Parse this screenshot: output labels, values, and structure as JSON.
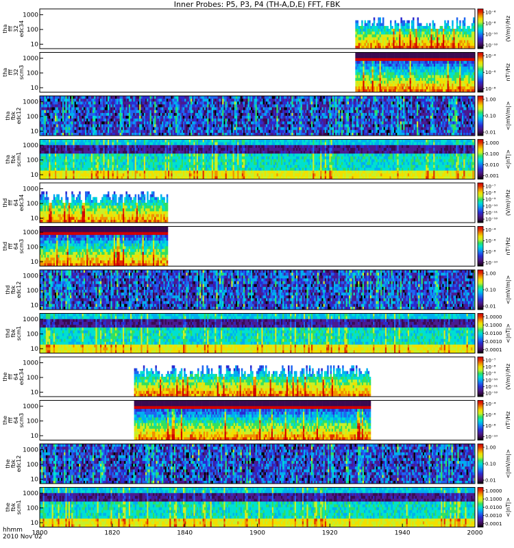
{
  "title": "Inner Probes: P5, P3, P4 (TH-A,D,E) FFT, FBK",
  "x_axis": {
    "name_line1": "hhmm",
    "name_line2": "2010 Nov 02",
    "ticks": [
      "1800",
      "1820",
      "1840",
      "1900",
      "1920",
      "1940",
      "2000"
    ]
  },
  "colors": {
    "frame": "#000000",
    "background": "#ffffff",
    "colormap": [
      "#000000",
      "#3a0a50",
      "#4a1a90",
      "#2a2ad0",
      "#1f64f0",
      "#00aef0",
      "#00e0d0",
      "#30e060",
      "#c8f028",
      "#f0e000",
      "#f09000",
      "#e03000",
      "#d00000"
    ]
  },
  "chart_data": [
    {
      "type": "heatmap",
      "name": "tha_fff_32_edc34",
      "ylabel": [
        "tha",
        "fff",
        "32",
        "edc34"
      ],
      "yticks": [
        "10",
        "100",
        "1000"
      ],
      "cbar_label": "(V/m)²/Hz",
      "cbar_ticks": [
        "10⁻⁶",
        "10⁻⁸",
        "10⁻¹⁰",
        "10⁻¹²"
      ],
      "data_start_min": 87,
      "data_end_min": 120,
      "style": "fft-e",
      "seed": 11
    },
    {
      "type": "heatmap",
      "name": "tha_fff_32_scm3",
      "ylabel": [
        "tha",
        "fff",
        "32",
        "scm3"
      ],
      "yticks": [
        "10",
        "100",
        "1000"
      ],
      "cbar_label": "nT²/Hz",
      "cbar_ticks": [
        "10⁻⁴",
        "10⁻⁶",
        "10⁻⁸"
      ],
      "data_start_min": 87,
      "data_end_min": 120,
      "style": "fft-b",
      "seed": 23
    },
    {
      "type": "heatmap",
      "name": "tha_fbk_edc12",
      "ylabel": [
        "tha",
        "fbk",
        "edc12"
      ],
      "yticks": [
        "10",
        "100",
        "1000"
      ],
      "cbar_label": "<|mV/m|>",
      "cbar_ticks": [
        "1.00",
        "0.10",
        "0.01"
      ],
      "data_start_min": 0,
      "data_end_min": 120,
      "style": "fbk-e",
      "seed": 37
    },
    {
      "type": "heatmap",
      "name": "tha_fbk_scm1",
      "ylabel": [
        "tha",
        "fbk",
        "scm1"
      ],
      "yticks": [
        "10",
        "100",
        "1000"
      ],
      "cbar_label": "<|nT|>",
      "cbar_ticks": [
        "1.000",
        "0.100",
        "0.010",
        "0.001"
      ],
      "data_start_min": 0,
      "data_end_min": 120,
      "style": "fbk-b",
      "seed": 41
    },
    {
      "type": "heatmap",
      "name": "thd_fff_64_edc34",
      "ylabel": [
        "thd",
        "fff",
        "64",
        "edc34"
      ],
      "yticks": [
        "10",
        "100",
        "1000"
      ],
      "cbar_label": "(V/m)²/Hz",
      "cbar_ticks": [
        "10⁻⁷",
        "10⁻⁸",
        "10⁻⁹",
        "10⁻¹⁰",
        "10⁻¹¹",
        "10⁻¹²"
      ],
      "data_start_min": 0,
      "data_end_min": 35,
      "style": "fft-e",
      "seed": 53
    },
    {
      "type": "heatmap",
      "name": "thd_fff_64_scm3",
      "ylabel": [
        "thd",
        "fff",
        "64",
        "scm3"
      ],
      "yticks": [
        "10",
        "100",
        "1000"
      ],
      "cbar_label": "nT²/Hz",
      "cbar_ticks": [
        "10⁻⁴",
        "10⁻⁶",
        "10⁻⁸",
        "10⁻¹⁰"
      ],
      "data_start_min": 0,
      "data_end_min": 35,
      "style": "fft-b",
      "seed": 67
    },
    {
      "type": "heatmap",
      "name": "thd_fbk_edc12",
      "ylabel": [
        "thd",
        "fbk",
        "edc12"
      ],
      "yticks": [
        "10",
        "100",
        "1000"
      ],
      "cbar_label": "<|mV/m|>",
      "cbar_ticks": [
        "1.00",
        "0.10",
        "0.01"
      ],
      "data_start_min": 0,
      "data_end_min": 120,
      "style": "fbk-e",
      "seed": 71
    },
    {
      "type": "heatmap",
      "name": "thd_fbk_scm1",
      "ylabel": [
        "thd",
        "fbk",
        "scm1"
      ],
      "yticks": [
        "10",
        "100",
        "1000"
      ],
      "cbar_label": "<|nT|>",
      "cbar_ticks": [
        "1.0000",
        "0.1000",
        "0.0100",
        "0.0010",
        "0.0001"
      ],
      "data_start_min": 0,
      "data_end_min": 120,
      "style": "fbk-b",
      "seed": 83
    },
    {
      "type": "heatmap",
      "name": "the_fff_64_edc34",
      "ylabel": [
        "the",
        "fff",
        "64",
        "edc34"
      ],
      "yticks": [
        "10",
        "100",
        "1000"
      ],
      "cbar_label": "(V/m)²/Hz",
      "cbar_ticks": [
        "10⁻⁷",
        "10⁻⁸",
        "10⁻⁹",
        "10⁻¹⁰",
        "10⁻¹¹",
        "10⁻¹²"
      ],
      "data_start_min": 26,
      "data_end_min": 91,
      "style": "fft-e",
      "seed": 97
    },
    {
      "type": "heatmap",
      "name": "the_fff_64_scm3",
      "ylabel": [
        "the",
        "fff",
        "64",
        "scm3"
      ],
      "yticks": [
        "10",
        "100",
        "1000"
      ],
      "cbar_label": "nT²/Hz",
      "cbar_ticks": [
        "10⁻⁴",
        "10⁻⁶",
        "10⁻⁸",
        "10⁻¹⁰"
      ],
      "data_start_min": 26,
      "data_end_min": 91,
      "style": "fft-b",
      "seed": 101
    },
    {
      "type": "heatmap",
      "name": "the_fbk_edc12",
      "ylabel": [
        "the",
        "fbk",
        "edc12"
      ],
      "yticks": [
        "10",
        "100",
        "1000"
      ],
      "cbar_label": "<|mV/m|>",
      "cbar_ticks": [
        "1.00",
        "0.10",
        "0.01"
      ],
      "data_start_min": 0,
      "data_end_min": 120,
      "style": "fbk-e",
      "seed": 113
    },
    {
      "type": "heatmap",
      "name": "the_fbk_scm1",
      "ylabel": [
        "the",
        "fbk",
        "scm1"
      ],
      "yticks": [
        "10",
        "100",
        "1000"
      ],
      "cbar_label": "<|nT|>",
      "cbar_ticks": [
        "1.0000",
        "0.1000",
        "0.0100",
        "0.0010",
        "0.0001"
      ],
      "data_start_min": 0,
      "data_end_min": 120,
      "style": "fbk-b",
      "seed": 127
    }
  ]
}
